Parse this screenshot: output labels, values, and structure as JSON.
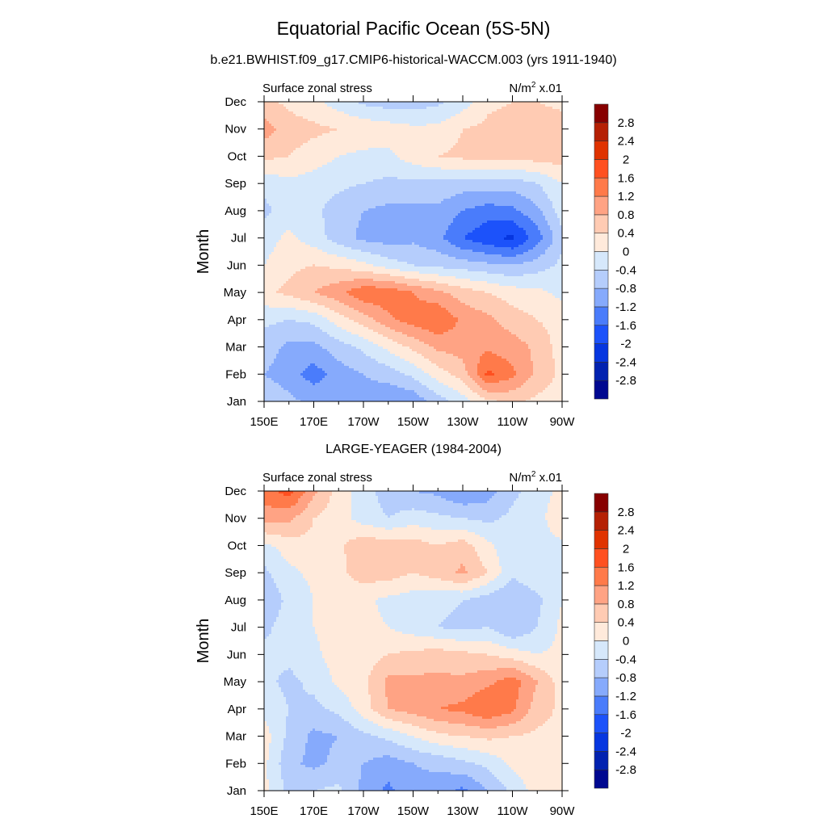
{
  "title": "Equatorial Pacific Ocean (5S-5N)",
  "subtitle": "b.e21.BWHIST.f09_g17.CMIP6-historical-WACCM.003 (yrs 1911-1940)",
  "second_title": "LARGE-YEAGER (1984-2004)",
  "colors": [
    "#000890",
    "#0222b0",
    "#0636e0",
    "#1c52fa",
    "#4a7cfb",
    "#86aafc",
    "#b5cdfc",
    "#d6e8fb",
    "#ffeadb",
    "#ffcbb3",
    "#ffa384",
    "#ff7a4a",
    "#ff5020",
    "#e03300",
    "#b52004",
    "#870000"
  ],
  "chart_data": [
    {
      "type": "heatmap",
      "left_label": "Surface zonal stress",
      "units_label": "N/m",
      "units_sup": "2",
      "units_scale": " x.01",
      "ylabel": "Month",
      "x_ticks": [
        "150E",
        "170E",
        "170W",
        "150W",
        "130W",
        "110W",
        "90W"
      ],
      "y_ticks": [
        "Jan",
        "Feb",
        "Mar",
        "Apr",
        "May",
        "Jun",
        "Jul",
        "Aug",
        "Sep",
        "Oct",
        "Nov",
        "Dec"
      ],
      "lon": [
        150,
        160,
        170,
        180,
        190,
        200,
        210,
        220,
        230,
        240,
        250,
        260,
        270
      ],
      "levels": [
        "-2.8",
        "-2.4",
        "-2",
        "-1.6",
        "-1.2",
        "-0.8",
        "-0.4",
        "0",
        "0.4",
        "0.8",
        "1.2",
        "1.6",
        "2",
        "2.4",
        "2.8"
      ],
      "values": [
        [
          -0.5,
          -0.7,
          -0.9,
          -0.9,
          -1.0,
          -1.2,
          -1.1,
          -0.6,
          -0.2,
          0.3,
          0.5,
          0.3,
          0.2
        ],
        [
          -0.8,
          -1.0,
          -1.4,
          -1.0,
          -0.8,
          -0.6,
          -0.3,
          0.2,
          0.6,
          1.7,
          1.3,
          0.7,
          0.3
        ],
        [
          -0.6,
          -0.9,
          -0.9,
          -0.6,
          -0.3,
          0.1,
          0.5,
          0.9,
          1.0,
          1.1,
          1.0,
          0.7,
          0.2
        ],
        [
          -0.3,
          -0.4,
          -0.3,
          0.2,
          0.6,
          1.1,
          1.4,
          1.6,
          1.1,
          0.9,
          0.6,
          0.4,
          0.2
        ],
        [
          0.3,
          0.5,
          0.8,
          1.1,
          1.5,
          1.5,
          1.2,
          0.9,
          0.6,
          0.4,
          0.2,
          0.1,
          -0.1
        ],
        [
          0.0,
          0.3,
          0.4,
          0.3,
          0.1,
          -0.2,
          -0.4,
          -0.5,
          -0.6,
          -0.7,
          -0.8,
          -0.6,
          -0.3
        ],
        [
          -0.2,
          0.1,
          -0.2,
          -0.6,
          -0.9,
          -1.0,
          -0.9,
          -1.1,
          -1.6,
          -1.9,
          -2.1,
          -1.4,
          -0.5
        ],
        [
          -0.5,
          -0.2,
          -0.3,
          -0.6,
          -0.8,
          -0.9,
          -0.9,
          -0.9,
          -1.2,
          -1.4,
          -1.3,
          -0.9,
          -0.2
        ],
        [
          -0.3,
          -0.1,
          -0.2,
          -0.3,
          -0.4,
          -0.5,
          -0.5,
          -0.5,
          -0.6,
          -0.6,
          -0.6,
          -0.4,
          0.0
        ],
        [
          0.5,
          0.4,
          0.2,
          0.0,
          -0.1,
          -0.1,
          0.2,
          0.4,
          0.5,
          0.5,
          0.5,
          0.6,
          0.6
        ],
        [
          1.0,
          0.6,
          0.5,
          0.4,
          0.3,
          0.2,
          0.1,
          0.1,
          0.4,
          0.5,
          0.6,
          0.6,
          0.6
        ],
        [
          0.5,
          0.3,
          0.1,
          -0.2,
          -0.5,
          -0.6,
          -0.6,
          -0.5,
          -0.2,
          0.3,
          0.4,
          0.4,
          0.3
        ]
      ]
    },
    {
      "type": "heatmap",
      "left_label": "Surface zonal stress",
      "units_label": "N/m",
      "units_sup": "2",
      "units_scale": " x.01",
      "ylabel": "Month",
      "x_ticks": [
        "150E",
        "170E",
        "170W",
        "150W",
        "130W",
        "110W",
        "90W"
      ],
      "y_ticks": [
        "Jan",
        "Feb",
        "Mar",
        "Apr",
        "May",
        "Jun",
        "Jul",
        "Aug",
        "Sep",
        "Oct",
        "Nov",
        "Dec"
      ],
      "lon": [
        150,
        160,
        170,
        180,
        190,
        200,
        210,
        220,
        230,
        240,
        250,
        260,
        270
      ],
      "levels": [
        "-2.8",
        "-2.4",
        "-2",
        "-1.6",
        "-1.2",
        "-0.8",
        "-0.4",
        "0",
        "0.4",
        "0.8",
        "1.2",
        "1.6",
        "2",
        "2.4",
        "2.8"
      ],
      "values": [
        [
          0.1,
          -0.5,
          -0.4,
          -0.3,
          -0.9,
          -1.3,
          -0.9,
          -1.0,
          -1.3,
          -0.8,
          -0.3,
          0.2,
          0.3
        ],
        [
          0.1,
          -0.7,
          -0.9,
          -0.7,
          -0.8,
          -1.0,
          -0.8,
          -0.7,
          -0.5,
          -0.3,
          0.1,
          0.3,
          0.3
        ],
        [
          0.2,
          -0.5,
          -0.9,
          -0.8,
          -0.5,
          -0.3,
          0.0,
          0.3,
          0.4,
          0.5,
          0.4,
          0.3,
          0.3
        ],
        [
          -0.1,
          -0.4,
          -0.5,
          -0.3,
          0.2,
          0.8,
          1.0,
          1.2,
          1.3,
          1.6,
          1.3,
          0.6,
          0.3
        ],
        [
          -0.3,
          -0.5,
          -0.3,
          0.1,
          0.3,
          0.9,
          0.9,
          0.9,
          0.9,
          1.1,
          1.4,
          0.8,
          0.2
        ],
        [
          -0.3,
          -0.3,
          -0.1,
          0.2,
          0.2,
          0.4,
          0.5,
          0.6,
          0.5,
          0.4,
          0.2,
          0.0,
          0.1
        ],
        [
          -0.5,
          -0.2,
          0.0,
          0.2,
          0.1,
          0.0,
          -0.2,
          -0.4,
          -0.5,
          -0.4,
          -0.8,
          -0.4,
          0.1
        ],
        [
          -0.7,
          -0.3,
          0.0,
          0.2,
          0.1,
          -0.1,
          -0.2,
          -0.3,
          -0.4,
          -0.6,
          -0.8,
          -0.5,
          0.0
        ],
        [
          -0.5,
          -0.1,
          0.1,
          0.3,
          0.6,
          0.6,
          0.4,
          0.6,
          0.9,
          0.4,
          -0.3,
          -0.1,
          0.0
        ],
        [
          -0.1,
          0.2,
          0.3,
          0.3,
          0.7,
          0.6,
          0.6,
          0.4,
          0.6,
          0.1,
          -0.3,
          -0.2,
          -0.1
        ],
        [
          1.0,
          0.9,
          0.4,
          0.2,
          -0.2,
          -0.4,
          -0.2,
          -0.3,
          -0.4,
          -0.5,
          -0.3,
          -0.2,
          0.4
        ],
        [
          1.4,
          1.8,
          0.9,
          0.2,
          -0.2,
          -0.6,
          -0.8,
          -0.9,
          -1.2,
          -1.0,
          -0.5,
          -0.2,
          0.1
        ]
      ]
    }
  ]
}
